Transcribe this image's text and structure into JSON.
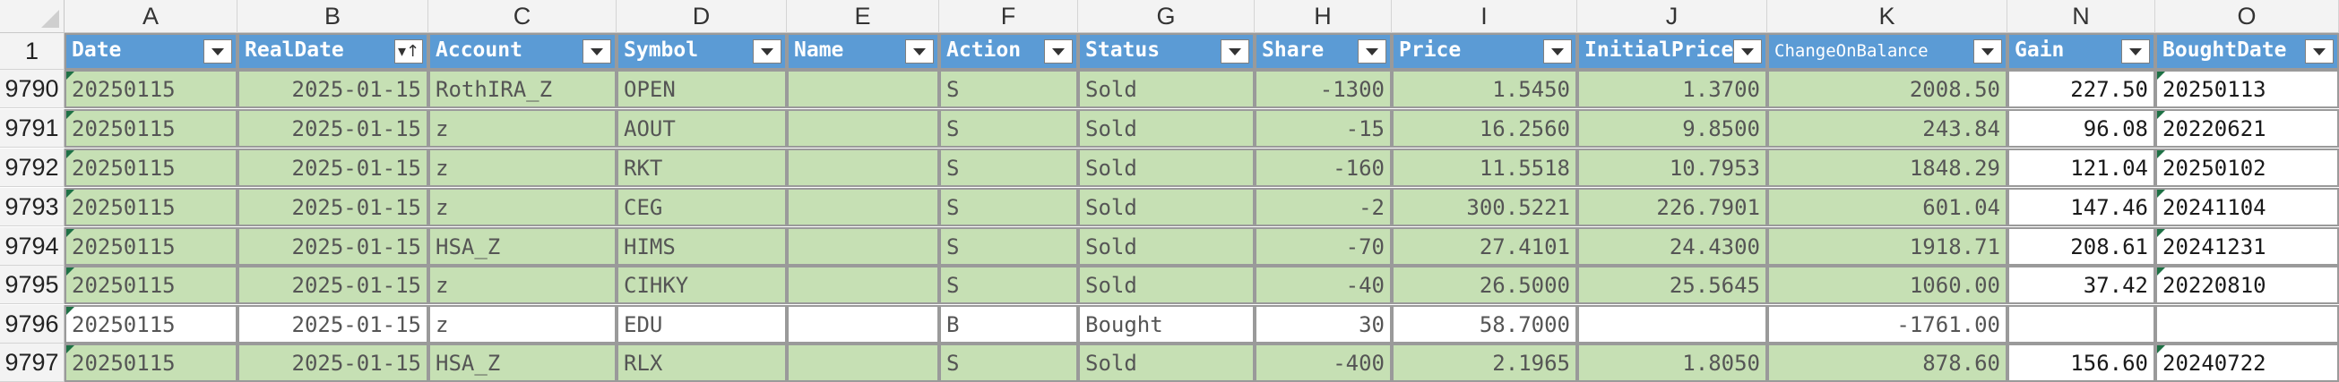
{
  "columns": [
    "A",
    "B",
    "C",
    "D",
    "E",
    "F",
    "G",
    "H",
    "I",
    "J",
    "K",
    "N",
    "O"
  ],
  "header_row_number": "1",
  "headers": [
    "Date",
    "RealDate",
    "Account",
    "Symbol",
    "Name",
    "Action",
    "Status",
    "Share",
    "Price",
    "InitialPrice",
    "ChangeOnBalance",
    "Gain",
    "BoughtDate"
  ],
  "rows": [
    {
      "num": "9790",
      "cells": [
        "20250115",
        "2025-01-15",
        "RothIRA_Z",
        "OPEN",
        "",
        "S",
        "Sold",
        "-1300",
        "1.5450",
        "1.3700",
        "2008.50",
        "227.50",
        "20250113"
      ]
    },
    {
      "num": "9791",
      "cells": [
        "20250115",
        "2025-01-15",
        "z",
        "AOUT",
        "",
        "S",
        "Sold",
        "-15",
        "16.2560",
        "9.8500",
        "243.84",
        "96.08",
        "20220621"
      ]
    },
    {
      "num": "9792",
      "cells": [
        "20250115",
        "2025-01-15",
        "z",
        "RKT",
        "",
        "S",
        "Sold",
        "-160",
        "11.5518",
        "10.7953",
        "1848.29",
        "121.04",
        "20250102"
      ]
    },
    {
      "num": "9793",
      "cells": [
        "20250115",
        "2025-01-15",
        "z",
        "CEG",
        "",
        "S",
        "Sold",
        "-2",
        "300.5221",
        "226.7901",
        "601.04",
        "147.46",
        "20241104"
      ]
    },
    {
      "num": "9794",
      "cells": [
        "20250115",
        "2025-01-15",
        "HSA_Z",
        "HIMS",
        "",
        "S",
        "Sold",
        "-70",
        "27.4101",
        "24.4300",
        "1918.71",
        "208.61",
        "20241231"
      ]
    },
    {
      "num": "9795",
      "cells": [
        "20250115",
        "2025-01-15",
        "z",
        "CIHKY",
        "",
        "S",
        "Sold",
        "-40",
        "26.5000",
        "25.5645",
        "1060.00",
        "37.42",
        "20220810"
      ]
    },
    {
      "num": "9796",
      "cells": [
        "20250115",
        "2025-01-15",
        "z",
        "EDU",
        "",
        "B",
        "Bought",
        "30",
        "58.7000",
        "",
        "-1761.00",
        "",
        ""
      ]
    },
    {
      "num": "9797",
      "cells": [
        "20250115",
        "2025-01-15",
        "HSA_Z",
        "RLX",
        "",
        "S",
        "Sold",
        "-400",
        "2.1965",
        "1.8050",
        "878.60",
        "156.60",
        "20240722"
      ]
    }
  ],
  "colors": {
    "header_fill": "#5b9bd5",
    "sold_fill": "#c6e0b4",
    "bought_fill": "#ffffff",
    "error_marker": "#1e7145"
  }
}
